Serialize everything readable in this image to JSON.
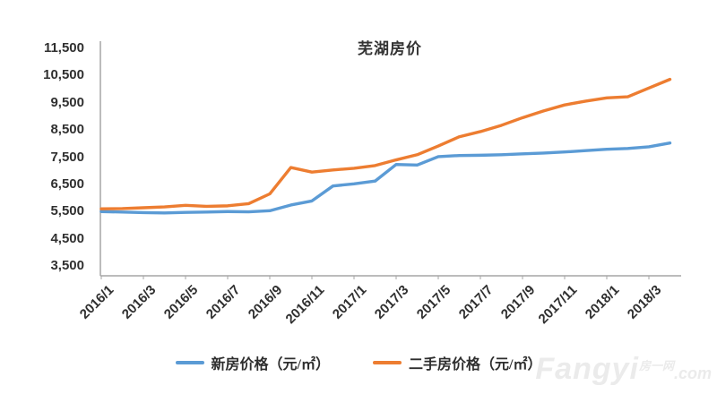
{
  "watermark": {
    "brand": "Fangyi",
    "brand_suffix": "房一网",
    "domain": ".com"
  },
  "chart_data": {
    "type": "line",
    "title": "芜湖房价",
    "xlabel": "",
    "ylabel": "",
    "x": [
      "2016/1",
      "2016/2",
      "2016/3",
      "2016/4",
      "2016/5",
      "2016/6",
      "2016/7",
      "2016/8",
      "2016/9",
      "2016/10",
      "2016/11",
      "2016/12",
      "2017/1",
      "2017/2",
      "2017/3",
      "2017/4",
      "2017/5",
      "2017/6",
      "2017/7",
      "2017/8",
      "2017/9",
      "2017/10",
      "2017/11",
      "2017/12",
      "2018/1",
      "2018/2",
      "2018/3",
      "2018/4"
    ],
    "x_tick_step": 2,
    "ylim": [
      3500,
      11500
    ],
    "y_tick_interval": 1000,
    "grid": false,
    "legend_position": "bottom",
    "axis_color": "#a6a6a6",
    "series": [
      {
        "name": "新房价格（元/㎡）",
        "color": "#5b9bd5",
        "values": [
          5500,
          5480,
          5460,
          5450,
          5470,
          5480,
          5500,
          5490,
          5530,
          5740,
          5890,
          6440,
          6520,
          6620,
          7230,
          7210,
          7520,
          7560,
          7570,
          7590,
          7620,
          7650,
          7690,
          7740,
          7790,
          7820,
          7880,
          8020
        ]
      },
      {
        "name": "二手房价格（元/㎡）",
        "color": "#ed7d31",
        "values": [
          5600,
          5610,
          5640,
          5670,
          5730,
          5690,
          5710,
          5790,
          6150,
          7120,
          6950,
          7030,
          7090,
          7190,
          7400,
          7590,
          7910,
          8250,
          8440,
          8670,
          8950,
          9200,
          9420,
          9560,
          9680,
          9720,
          10040,
          10360
        ]
      }
    ]
  }
}
